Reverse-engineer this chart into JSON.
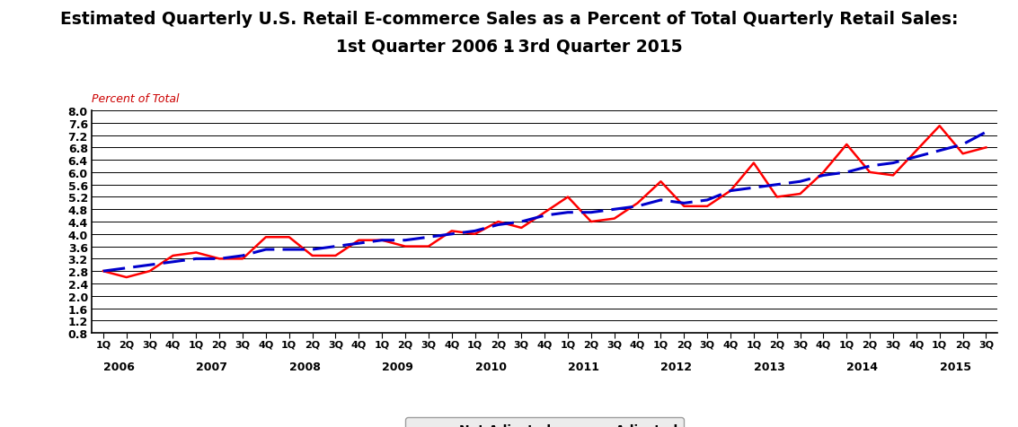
{
  "title_line1": "Estimated Quarterly U.S. Retail E-commerce Sales as a Percent of Total Quarterly Retail Sales:",
  "title_line2": "1ˢᵗ Quarter 2006 - 3ʳᵈ Quarter 2015",
  "ylabel": "Percent of Total",
  "ylim": [
    0.8,
    8.0
  ],
  "yticks": [
    0.8,
    1.2,
    1.6,
    2.0,
    2.4,
    2.8,
    3.2,
    3.6,
    4.0,
    4.4,
    4.8,
    5.2,
    5.6,
    6.0,
    6.4,
    6.8,
    7.2,
    7.6,
    8.0
  ],
  "x_labels_short": [
    "1Q",
    "2Q",
    "3Q",
    "4Q",
    "1Q",
    "2Q",
    "3Q",
    "4Q",
    "1Q",
    "2Q",
    "3Q",
    "4Q",
    "1Q",
    "2Q",
    "3Q",
    "4Q",
    "1Q",
    "2Q",
    "3Q",
    "4Q",
    "1Q",
    "2Q",
    "3Q",
    "4Q",
    "1Q",
    "2Q",
    "3Q",
    "4Q",
    "1Q",
    "2Q",
    "3Q",
    "4Q",
    "1Q",
    "2Q",
    "3Q",
    "4Q",
    "1Q",
    "2Q",
    "3Q"
  ],
  "year_labels": [
    "2006",
    "2007",
    "2008",
    "2009",
    "2010",
    "2011",
    "2012",
    "2013",
    "2014",
    "2015"
  ],
  "year_positions": [
    0,
    4,
    8,
    12,
    16,
    20,
    24,
    28,
    32,
    36
  ],
  "not_adjusted": [
    2.8,
    2.6,
    2.8,
    3.3,
    3.4,
    3.2,
    3.2,
    3.9,
    3.9,
    3.3,
    3.3,
    3.8,
    3.8,
    3.6,
    3.6,
    4.1,
    4.0,
    4.4,
    4.2,
    4.7,
    5.2,
    4.4,
    4.5,
    5.0,
    5.7,
    4.9,
    4.9,
    5.4,
    6.3,
    5.2,
    5.3,
    6.0,
    6.9,
    6.0,
    5.9,
    6.7,
    7.5,
    6.6,
    6.8
  ],
  "adjusted": [
    2.8,
    2.9,
    3.0,
    3.1,
    3.2,
    3.2,
    3.3,
    3.5,
    3.5,
    3.5,
    3.6,
    3.7,
    3.8,
    3.8,
    3.9,
    4.0,
    4.1,
    4.3,
    4.4,
    4.6,
    4.7,
    4.7,
    4.8,
    4.9,
    5.1,
    5.0,
    5.1,
    5.4,
    5.5,
    5.6,
    5.7,
    5.9,
    6.0,
    6.2,
    6.3,
    6.5,
    6.7,
    6.9,
    7.3
  ],
  "line_color_not_adjusted": "#FF0000",
  "line_color_adjusted": "#0000CC",
  "background_color": "#FFFFFF",
  "title_color": "#000000",
  "ylabel_color": "#CC0000",
  "title_fontsize": 13.5,
  "subtitle_fontsize": 13.5,
  "ylabel_fontsize": 9,
  "tick_fontsize": 9,
  "legend_fontsize": 10
}
